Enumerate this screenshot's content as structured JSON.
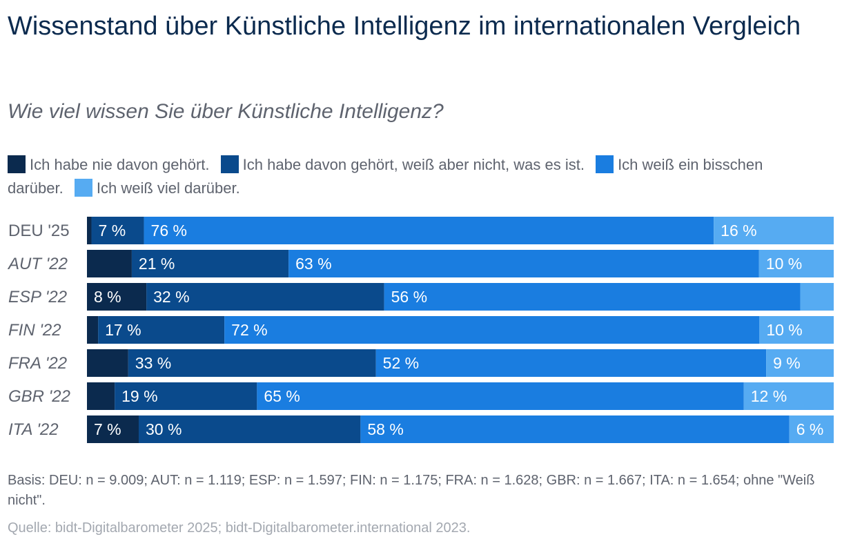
{
  "header": {
    "title": "Wissenstand über Künstliche Intelligenz im internationalen Vergleich",
    "subtitle": "Wie viel wissen Sie über Künstliche Intelligenz?"
  },
  "legend": [
    {
      "label": "Ich habe nie davon gehört.",
      "color": "#0b2a4e"
    },
    {
      "label": "Ich habe davon gehört, weiß aber nicht, was es ist.",
      "color": "#0a4a8c"
    },
    {
      "label": "Ich weiß ein bisschen darüber.",
      "color": "#1a7de0"
    },
    {
      "label": "Ich weiß viel darüber.",
      "color": "#56abf2"
    }
  ],
  "chart_data": {
    "type": "bar",
    "orientation": "horizontal",
    "stacked": true,
    "unit": "%",
    "categories": [
      "DEU '25",
      "AUT '22",
      "ESP '22",
      "FIN '22",
      "FRA '22",
      "GBR '22",
      "ITA '22"
    ],
    "category_italic": [
      false,
      true,
      true,
      true,
      true,
      true,
      true
    ],
    "series": [
      {
        "name": "Ich habe nie davon gehört.",
        "color": "#0b2a4e",
        "values": [
          0.6,
          6,
          8,
          1.5,
          5.5,
          3.7,
          7
        ],
        "labels": [
          "",
          "",
          "8 %",
          "",
          "",
          "",
          "7 %"
        ]
      },
      {
        "name": "Ich habe davon gehört, weiß aber nicht, was es ist.",
        "color": "#0a4a8c",
        "values": [
          7,
          21,
          32,
          17,
          33,
          19,
          30
        ],
        "labels": [
          "7 %",
          "21 %",
          "32 %",
          "17 %",
          "33 %",
          "19 %",
          "30 %"
        ]
      },
      {
        "name": "Ich weiß ein bisschen darüber.",
        "color": "#1a7de0",
        "values": [
          76,
          63,
          56,
          72,
          52,
          65,
          58
        ],
        "labels": [
          "76 %",
          "63 %",
          "56 %",
          "72 %",
          "52 %",
          "65 %",
          "58 %"
        ]
      },
      {
        "name": "Ich weiß viel darüber.",
        "color": "#56abf2",
        "values": [
          16,
          10,
          4.5,
          10,
          9,
          12,
          6
        ],
        "labels": [
          "16 %",
          "10 %",
          "",
          "10 %",
          "9 %",
          "12 %",
          "6 %"
        ]
      }
    ]
  },
  "footer": {
    "basis": "Basis: DEU: n = 9.009; AUT: n = 1.119; ESP: n = 1.597; FIN: n = 1.175; FRA: n = 1.628; GBR: n = 1.667; ITA: n = 1.654; ohne \"Weiß nicht\".",
    "source": "Quelle: bidt-Digitalbarometer 2025; bidt-Digitalbarometer.international 2023."
  }
}
